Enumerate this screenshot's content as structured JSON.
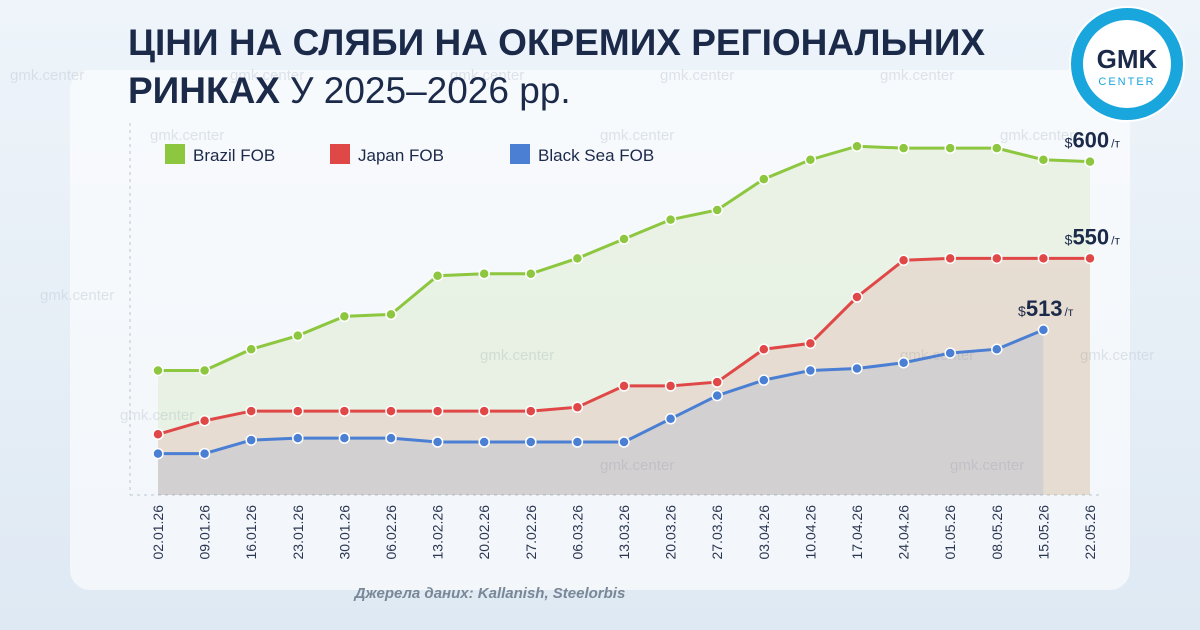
{
  "chart_data": {
    "type": "line",
    "title": {
      "line1": "ЦІНИ НА СЛЯБИ НА ОКРЕМИХ РЕГІОНАЛЬНИХ",
      "line2_bold": "РИНКАХ",
      "line2_rest": "У 2025–2026 рр."
    },
    "categories": [
      "02.01.26",
      "09.01.26",
      "16.01.26",
      "23.01.26",
      "30.01.26",
      "06.02.26",
      "13.02.26",
      "20.02.26",
      "27.02.26",
      "06.03.26",
      "13.03.26",
      "20.03.26",
      "27.03.26",
      "03.04.26",
      "10.04.26",
      "17.04.26",
      "24.04.26",
      "01.05.26",
      "08.05.26",
      "15.05.26",
      "22.05.26"
    ],
    "series": [
      {
        "name": "Brazil FOB",
        "color": "#8dc63f",
        "values": [
          492,
          492,
          503,
          510,
          520,
          521,
          541,
          542,
          542,
          550,
          560,
          570,
          575,
          591,
          601,
          608,
          607,
          607,
          607,
          601,
          600
        ]
      },
      {
        "name": "Japan FOB",
        "color": "#e04848",
        "values": [
          459,
          466,
          471,
          471,
          471,
          471,
          471,
          471,
          471,
          473,
          484,
          484,
          486,
          503,
          506,
          530,
          549,
          550,
          550,
          550,
          550
        ]
      },
      {
        "name": "Black Sea FOB",
        "color": "#4a7fd4",
        "values": [
          449,
          449,
          456,
          457,
          457,
          457,
          455,
          455,
          455,
          455,
          455,
          467,
          479,
          487,
          492,
          493,
          496,
          501,
          503,
          513,
          null
        ]
      }
    ],
    "currency": "$",
    "unit": "/т",
    "ylim": [
      440,
      620
    ],
    "legend": "top-left",
    "source": "Джерела даних: Kallanish, Steelorbis",
    "logo": {
      "main": "GMK",
      "sub": "CENTER"
    },
    "watermark": "gmk.center"
  }
}
